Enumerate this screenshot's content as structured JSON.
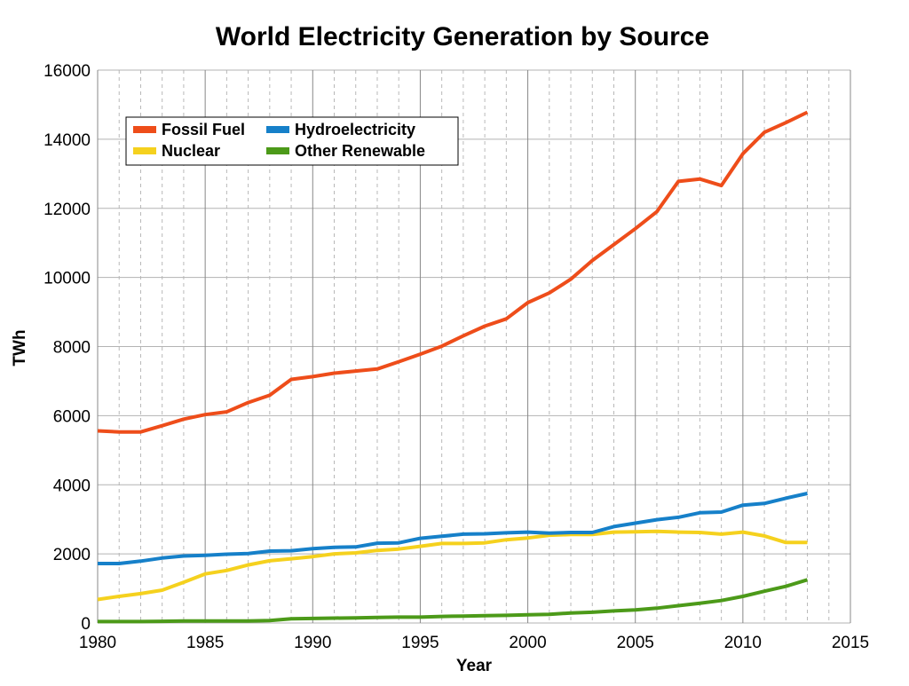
{
  "chart_data": {
    "type": "line",
    "title": "World Electricity Generation by Source",
    "xlabel": "Year",
    "ylabel": "TWh",
    "xlim": [
      1980,
      2015
    ],
    "ylim": [
      0,
      16000
    ],
    "x_ticks": [
      1980,
      1985,
      1990,
      1995,
      2000,
      2005,
      2010,
      2015
    ],
    "y_ticks": [
      0,
      2000,
      4000,
      6000,
      8000,
      10000,
      12000,
      14000,
      16000
    ],
    "x_tick_labels": [
      "1980",
      "1985",
      "1990",
      "1995",
      "2000",
      "2005",
      "2010",
      "2015"
    ],
    "y_tick_labels": [
      "0",
      "2000",
      "4000",
      "6000",
      "8000",
      "10000",
      "12000",
      "14000",
      "16000"
    ],
    "grid": true,
    "legend_position": "top-left",
    "x": [
      1980,
      1981,
      1982,
      1983,
      1984,
      1985,
      1986,
      1987,
      1988,
      1989,
      1990,
      1991,
      1992,
      1993,
      1994,
      1995,
      1996,
      1997,
      1998,
      1999,
      2000,
      2001,
      2002,
      2003,
      2004,
      2005,
      2006,
      2007,
      2008,
      2009,
      2010,
      2011,
      2012,
      2013
    ],
    "series": [
      {
        "name": "Fossil Fuel",
        "color": "#ee4d1a",
        "values": [
          5560,
          5530,
          5530,
          5710,
          5900,
          6030,
          6110,
          6380,
          6590,
          7050,
          7130,
          7230,
          7290,
          7350,
          7560,
          7780,
          8010,
          8310,
          8590,
          8800,
          9270,
          9550,
          9950,
          10490,
          10950,
          11410,
          11900,
          12780,
          12850,
          12660,
          13580,
          14200,
          14480,
          14780
        ]
      },
      {
        "name": "Hydroelectricity",
        "color": "#1680c9",
        "values": [
          1720,
          1720,
          1790,
          1880,
          1940,
          1960,
          1990,
          2010,
          2080,
          2090,
          2150,
          2190,
          2200,
          2310,
          2320,
          2450,
          2510,
          2570,
          2580,
          2610,
          2630,
          2600,
          2620,
          2620,
          2790,
          2890,
          2990,
          3060,
          3190,
          3210,
          3410,
          3460,
          3610,
          3750
        ]
      },
      {
        "name": "Nuclear",
        "color": "#f5d11e",
        "values": [
          680,
          770,
          850,
          950,
          1180,
          1420,
          1520,
          1680,
          1800,
          1860,
          1920,
          2000,
          2030,
          2100,
          2140,
          2220,
          2300,
          2300,
          2320,
          2410,
          2460,
          2540,
          2560,
          2560,
          2630,
          2640,
          2650,
          2630,
          2620,
          2570,
          2630,
          2520,
          2330,
          2330
        ]
      },
      {
        "name": "Other Renewable",
        "color": "#4c9a19",
        "values": [
          40,
          40,
          40,
          50,
          60,
          60,
          60,
          60,
          70,
          120,
          130,
          140,
          150,
          160,
          170,
          170,
          190,
          200,
          210,
          220,
          240,
          250,
          290,
          310,
          350,
          380,
          430,
          500,
          570,
          650,
          770,
          920,
          1060,
          1250
        ]
      }
    ],
    "legend": [
      {
        "label": "Fossil Fuel",
        "color": "#ee4d1a"
      },
      {
        "label": "Hydroelectricity",
        "color": "#1680c9"
      },
      {
        "label": "Nuclear",
        "color": "#f5d11e"
      },
      {
        "label": "Other Renewable",
        "color": "#4c9a19"
      }
    ]
  }
}
